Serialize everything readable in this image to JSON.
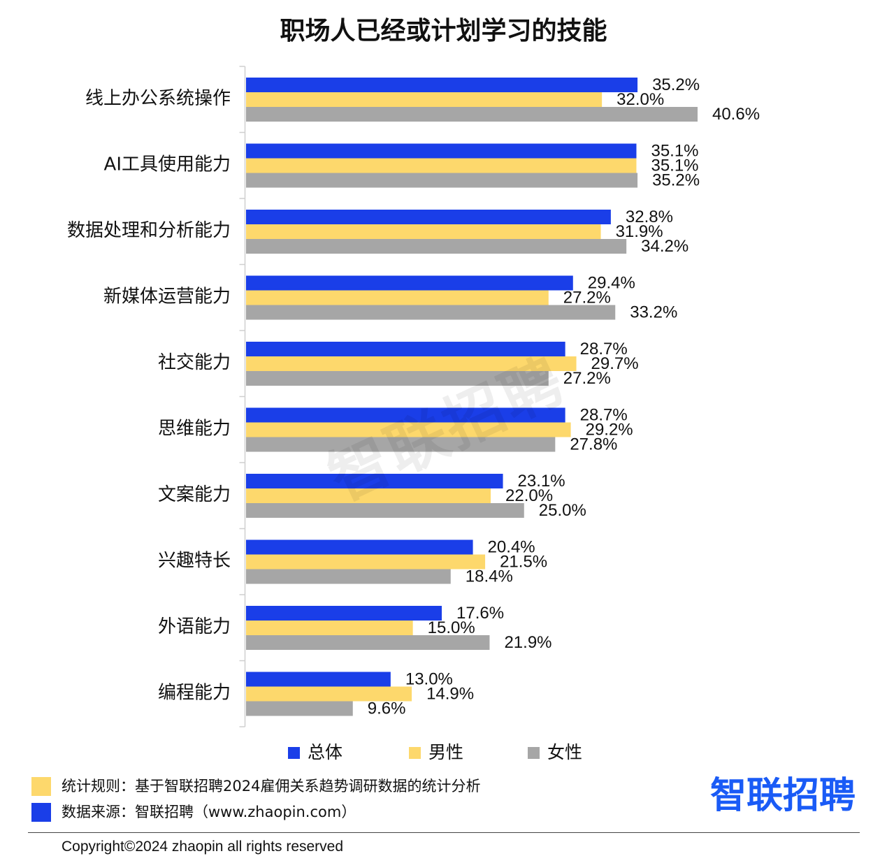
{
  "chart_data": {
    "type": "bar",
    "orientation": "horizontal",
    "title": "职场人已经或计划学习的技能",
    "xlabel": "",
    "ylabel": "",
    "xlim": [
      0,
      45
    ],
    "grid": false,
    "legend": "bottom",
    "value_suffix": "%",
    "categories": [
      "线上办公系统操作",
      "AI工具使用能力",
      "数据处理和分析能力",
      "新媒体运营能力",
      "社交能力",
      "思维能力",
      "文案能力",
      "兴趣特长",
      "外语能力",
      "编程能力"
    ],
    "series": [
      {
        "name": "总体",
        "color": "#1a3ee8",
        "values": [
          35.2,
          35.1,
          32.8,
          29.4,
          28.7,
          28.7,
          23.1,
          20.4,
          17.6,
          13.0
        ]
      },
      {
        "name": "男性",
        "color": "#fdd86c",
        "values": [
          32.0,
          35.1,
          31.9,
          27.2,
          29.7,
          29.2,
          22.0,
          21.5,
          15.0,
          14.9
        ]
      },
      {
        "name": "女性",
        "color": "#a6a6a6",
        "values": [
          40.6,
          35.2,
          34.2,
          33.2,
          27.2,
          27.8,
          25.0,
          18.4,
          21.9,
          9.6
        ]
      }
    ]
  },
  "watermark": "智联招聘",
  "footer": {
    "notes": [
      {
        "text": "统计规则：基于智联招聘2024雇佣关系趋势调研数据的统计分析",
        "color": "#fdd86c"
      },
      {
        "text": "数据来源：智联招聘（www.zhaopin.com）",
        "color": "#1a3ee8"
      }
    ],
    "logo": {
      "text": "智联招聘",
      "color": "#1a5bf6"
    },
    "copyright": "Copyright©2024 zhaopin all rights reserved"
  }
}
